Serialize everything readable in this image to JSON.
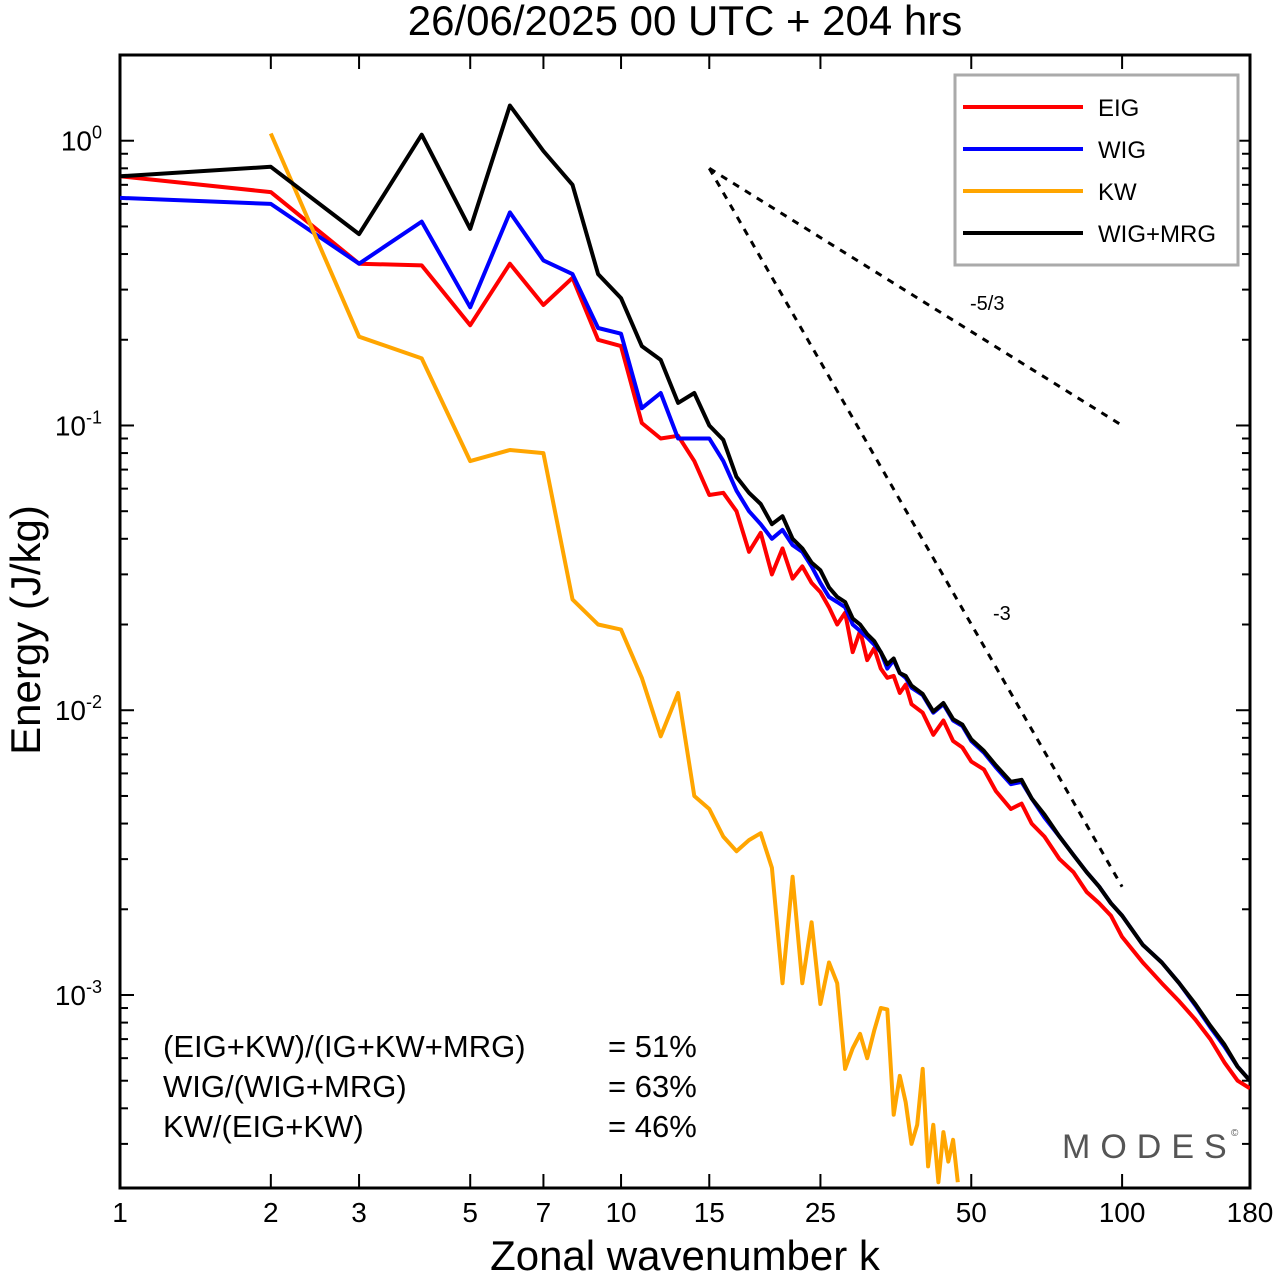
{
  "chart_data": {
    "type": "line",
    "title": "26/06/2025  00 UTC  + 204 hrs",
    "xlabel": "Zonal wavenumber k",
    "ylabel": "Energy (J/kg)",
    "x_scale": "log",
    "y_scale": "log",
    "xlim": [
      1,
      180
    ],
    "ylim": [
      0.00021,
      2.0
    ],
    "x_ticks": [
      1,
      2,
      3,
      5,
      7,
      10,
      15,
      25,
      50,
      100,
      180
    ],
    "x_tick_labels": [
      "1",
      "2",
      "3",
      "5",
      "7",
      "10",
      "15",
      "25",
      "50",
      "100",
      "180"
    ],
    "y_ticks": [
      {
        "value": 1,
        "base": "10",
        "exp": "0"
      },
      {
        "value": 0.1,
        "base": "10",
        "exp": "-1"
      },
      {
        "value": 0.01,
        "base": "10",
        "exp": "-2"
      },
      {
        "value": 0.001,
        "base": "10",
        "exp": "-3"
      }
    ],
    "grid": false,
    "legend_position": "top-right",
    "series": [
      {
        "name": "EIG",
        "color": "#ff0000",
        "points": [
          [
            1,
            0.75
          ],
          [
            2,
            0.66
          ],
          [
            3,
            0.37
          ],
          [
            4,
            0.365
          ],
          [
            5,
            0.225
          ],
          [
            6,
            0.37
          ],
          [
            7,
            0.265
          ],
          [
            8,
            0.33
          ],
          [
            9,
            0.2
          ],
          [
            10,
            0.19
          ],
          [
            11,
            0.102
          ],
          [
            12,
            0.09
          ],
          [
            13,
            0.092
          ],
          [
            14,
            0.075
          ],
          [
            15,
            0.057
          ],
          [
            16,
            0.058
          ],
          [
            17,
            0.05
          ],
          [
            18,
            0.036
          ],
          [
            19,
            0.042
          ],
          [
            20,
            0.03
          ],
          [
            21,
            0.037
          ],
          [
            22,
            0.029
          ],
          [
            23,
            0.032
          ],
          [
            24,
            0.028
          ],
          [
            25,
            0.026
          ],
          [
            26,
            0.023
          ],
          [
            27,
            0.02
          ],
          [
            28,
            0.022
          ],
          [
            29,
            0.016
          ],
          [
            30,
            0.019
          ],
          [
            31,
            0.015
          ],
          [
            32,
            0.0165
          ],
          [
            33,
            0.014
          ],
          [
            34,
            0.013
          ],
          [
            35,
            0.0132
          ],
          [
            36,
            0.0115
          ],
          [
            37,
            0.0123
          ],
          [
            38,
            0.0105
          ],
          [
            40,
            0.0098
          ],
          [
            42,
            0.0082
          ],
          [
            44,
            0.0092
          ],
          [
            46,
            0.0078
          ],
          [
            48,
            0.0074
          ],
          [
            50,
            0.0066
          ],
          [
            53,
            0.0062
          ],
          [
            56,
            0.0052
          ],
          [
            60,
            0.0045
          ],
          [
            63,
            0.0047
          ],
          [
            66,
            0.004
          ],
          [
            70,
            0.0036
          ],
          [
            75,
            0.003
          ],
          [
            80,
            0.0027
          ],
          [
            85,
            0.0023
          ],
          [
            90,
            0.0021
          ],
          [
            95,
            0.0019
          ],
          [
            100,
            0.0016
          ],
          [
            110,
            0.0013
          ],
          [
            120,
            0.0011
          ],
          [
            130,
            0.00095
          ],
          [
            140,
            0.00082
          ],
          [
            150,
            0.0007
          ],
          [
            160,
            0.00058
          ],
          [
            170,
            0.0005
          ],
          [
            180,
            0.00047
          ]
        ]
      },
      {
        "name": "WIG",
        "color": "#0000ff",
        "points": [
          [
            1,
            0.63
          ],
          [
            2,
            0.6
          ],
          [
            3,
            0.37
          ],
          [
            4,
            0.52
          ],
          [
            5,
            0.26
          ],
          [
            6,
            0.56
          ],
          [
            7,
            0.38
          ],
          [
            8,
            0.34
          ],
          [
            9,
            0.22
          ],
          [
            10,
            0.21
          ],
          [
            11,
            0.115
          ],
          [
            12,
            0.13
          ],
          [
            13,
            0.09
          ],
          [
            14,
            0.09
          ],
          [
            15,
            0.09
          ],
          [
            16,
            0.075
          ],
          [
            17,
            0.059
          ],
          [
            18,
            0.05
          ],
          [
            19,
            0.045
          ],
          [
            20,
            0.04
          ],
          [
            21,
            0.043
          ],
          [
            22,
            0.038
          ],
          [
            23,
            0.036
          ],
          [
            24,
            0.032
          ],
          [
            25,
            0.028
          ],
          [
            26,
            0.025
          ],
          [
            27,
            0.024
          ],
          [
            28,
            0.023
          ],
          [
            29,
            0.02
          ],
          [
            30,
            0.019
          ],
          [
            31,
            0.018
          ],
          [
            32,
            0.017
          ],
          [
            33,
            0.016
          ],
          [
            34,
            0.014
          ],
          [
            35,
            0.015
          ],
          [
            36,
            0.0135
          ],
          [
            37,
            0.013
          ],
          [
            38,
            0.012
          ],
          [
            40,
            0.0113
          ],
          [
            42,
            0.0098
          ],
          [
            44,
            0.0105
          ],
          [
            46,
            0.0092
          ],
          [
            48,
            0.0088
          ],
          [
            50,
            0.0078
          ],
          [
            53,
            0.0071
          ],
          [
            56,
            0.0063
          ],
          [
            60,
            0.0055
          ],
          [
            63,
            0.0056
          ],
          [
            66,
            0.0049
          ],
          [
            70,
            0.0042
          ],
          [
            75,
            0.0036
          ],
          [
            80,
            0.0031
          ],
          [
            85,
            0.0027
          ],
          [
            90,
            0.0024
          ],
          [
            95,
            0.0021
          ],
          [
            100,
            0.0019
          ],
          [
            110,
            0.0015
          ],
          [
            120,
            0.0013
          ],
          [
            130,
            0.0011
          ],
          [
            140,
            0.00092
          ],
          [
            150,
            0.00077
          ],
          [
            160,
            0.00066
          ],
          [
            170,
            0.00056
          ],
          [
            180,
            0.0005
          ]
        ]
      },
      {
        "name": "KW",
        "color": "#ffa500",
        "points": [
          [
            2,
            1.06
          ],
          [
            3,
            0.205
          ],
          [
            4,
            0.172
          ],
          [
            5,
            0.075
          ],
          [
            6,
            0.082
          ],
          [
            7,
            0.08
          ],
          [
            8,
            0.0245
          ],
          [
            9,
            0.02
          ],
          [
            10,
            0.0192
          ],
          [
            11,
            0.013
          ],
          [
            12,
            0.0081
          ],
          [
            13,
            0.0115
          ],
          [
            14,
            0.005
          ],
          [
            15,
            0.0045
          ],
          [
            16,
            0.0036
          ],
          [
            17,
            0.0032
          ],
          [
            18,
            0.0035
          ],
          [
            19,
            0.0037
          ],
          [
            20,
            0.0028
          ],
          [
            21,
            0.0011
          ],
          [
            22,
            0.0026
          ],
          [
            23,
            0.0011
          ],
          [
            24,
            0.0018
          ],
          [
            25,
            0.00093
          ],
          [
            26,
            0.0013
          ],
          [
            27,
            0.0011
          ],
          [
            28,
            0.00055
          ],
          [
            29,
            0.00065
          ],
          [
            30,
            0.00073
          ],
          [
            31,
            0.0006
          ],
          [
            32,
            0.00075
          ],
          [
            33,
            0.0009
          ],
          [
            34,
            0.00089
          ],
          [
            35,
            0.00038
          ],
          [
            36,
            0.00052
          ],
          [
            37,
            0.00042
          ],
          [
            38,
            0.0003
          ],
          [
            39,
            0.00035
          ],
          [
            40,
            0.00055
          ],
          [
            41,
            0.00025
          ],
          [
            42,
            0.00035
          ],
          [
            43,
            0.00022
          ],
          [
            44,
            0.00033
          ],
          [
            45,
            0.00026
          ],
          [
            46,
            0.00031
          ],
          [
            47,
            0.00022
          ]
        ]
      },
      {
        "name": "WIG+MRG",
        "color": "#000000",
        "points": [
          [
            1,
            0.75
          ],
          [
            2,
            0.81
          ],
          [
            3,
            0.47
          ],
          [
            4,
            1.05
          ],
          [
            5,
            0.49
          ],
          [
            6,
            1.33
          ],
          [
            7,
            0.92
          ],
          [
            8,
            0.7
          ],
          [
            9,
            0.34
          ],
          [
            10,
            0.28
          ],
          [
            11,
            0.19
          ],
          [
            12,
            0.17
          ],
          [
            13,
            0.12
          ],
          [
            14,
            0.13
          ],
          [
            15,
            0.1
          ],
          [
            16,
            0.089
          ],
          [
            17,
            0.066
          ],
          [
            18,
            0.058
          ],
          [
            19,
            0.053
          ],
          [
            20,
            0.045
          ],
          [
            21,
            0.048
          ],
          [
            22,
            0.04
          ],
          [
            23,
            0.037
          ],
          [
            24,
            0.033
          ],
          [
            25,
            0.031
          ],
          [
            26,
            0.027
          ],
          [
            27,
            0.025
          ],
          [
            28,
            0.024
          ],
          [
            29,
            0.021
          ],
          [
            30,
            0.02
          ],
          [
            31,
            0.0185
          ],
          [
            32,
            0.0175
          ],
          [
            33,
            0.016
          ],
          [
            34,
            0.0145
          ],
          [
            35,
            0.0152
          ],
          [
            36,
            0.0135
          ],
          [
            37,
            0.0132
          ],
          [
            38,
            0.0122
          ],
          [
            40,
            0.0114
          ],
          [
            42,
            0.0099
          ],
          [
            44,
            0.0106
          ],
          [
            46,
            0.0093
          ],
          [
            48,
            0.0089
          ],
          [
            50,
            0.0079
          ],
          [
            53,
            0.0072
          ],
          [
            56,
            0.0064
          ],
          [
            60,
            0.0056
          ],
          [
            63,
            0.0057
          ],
          [
            66,
            0.0049
          ],
          [
            70,
            0.0043
          ],
          [
            75,
            0.0036
          ],
          [
            80,
            0.0031
          ],
          [
            85,
            0.0027
          ],
          [
            90,
            0.0024
          ],
          [
            95,
            0.0021
          ],
          [
            100,
            0.0019
          ],
          [
            110,
            0.0015
          ],
          [
            120,
            0.0013
          ],
          [
            130,
            0.0011
          ],
          [
            140,
            0.00093
          ],
          [
            150,
            0.00078
          ],
          [
            160,
            0.00067
          ],
          [
            170,
            0.00056
          ],
          [
            180,
            0.0005
          ]
        ]
      }
    ],
    "slope_lines": [
      {
        "label": "-5/3",
        "points": [
          [
            15,
            0.8
          ],
          [
            100,
            0.1
          ]
        ]
      },
      {
        "label": "-3",
        "points": [
          [
            15,
            0.8
          ],
          [
            100,
            0.0024
          ]
        ]
      }
    ],
    "annotations": [
      {
        "lhs": "(EIG+KW)/(IG+KW+MRG)",
        "rhs": "= 51%"
      },
      {
        "lhs": "WIG/(WIG+MRG)",
        "rhs": "= 63%"
      },
      {
        "lhs": "KW/(EIG+KW)",
        "rhs": "= 46%"
      }
    ],
    "watermark": "MODES"
  }
}
